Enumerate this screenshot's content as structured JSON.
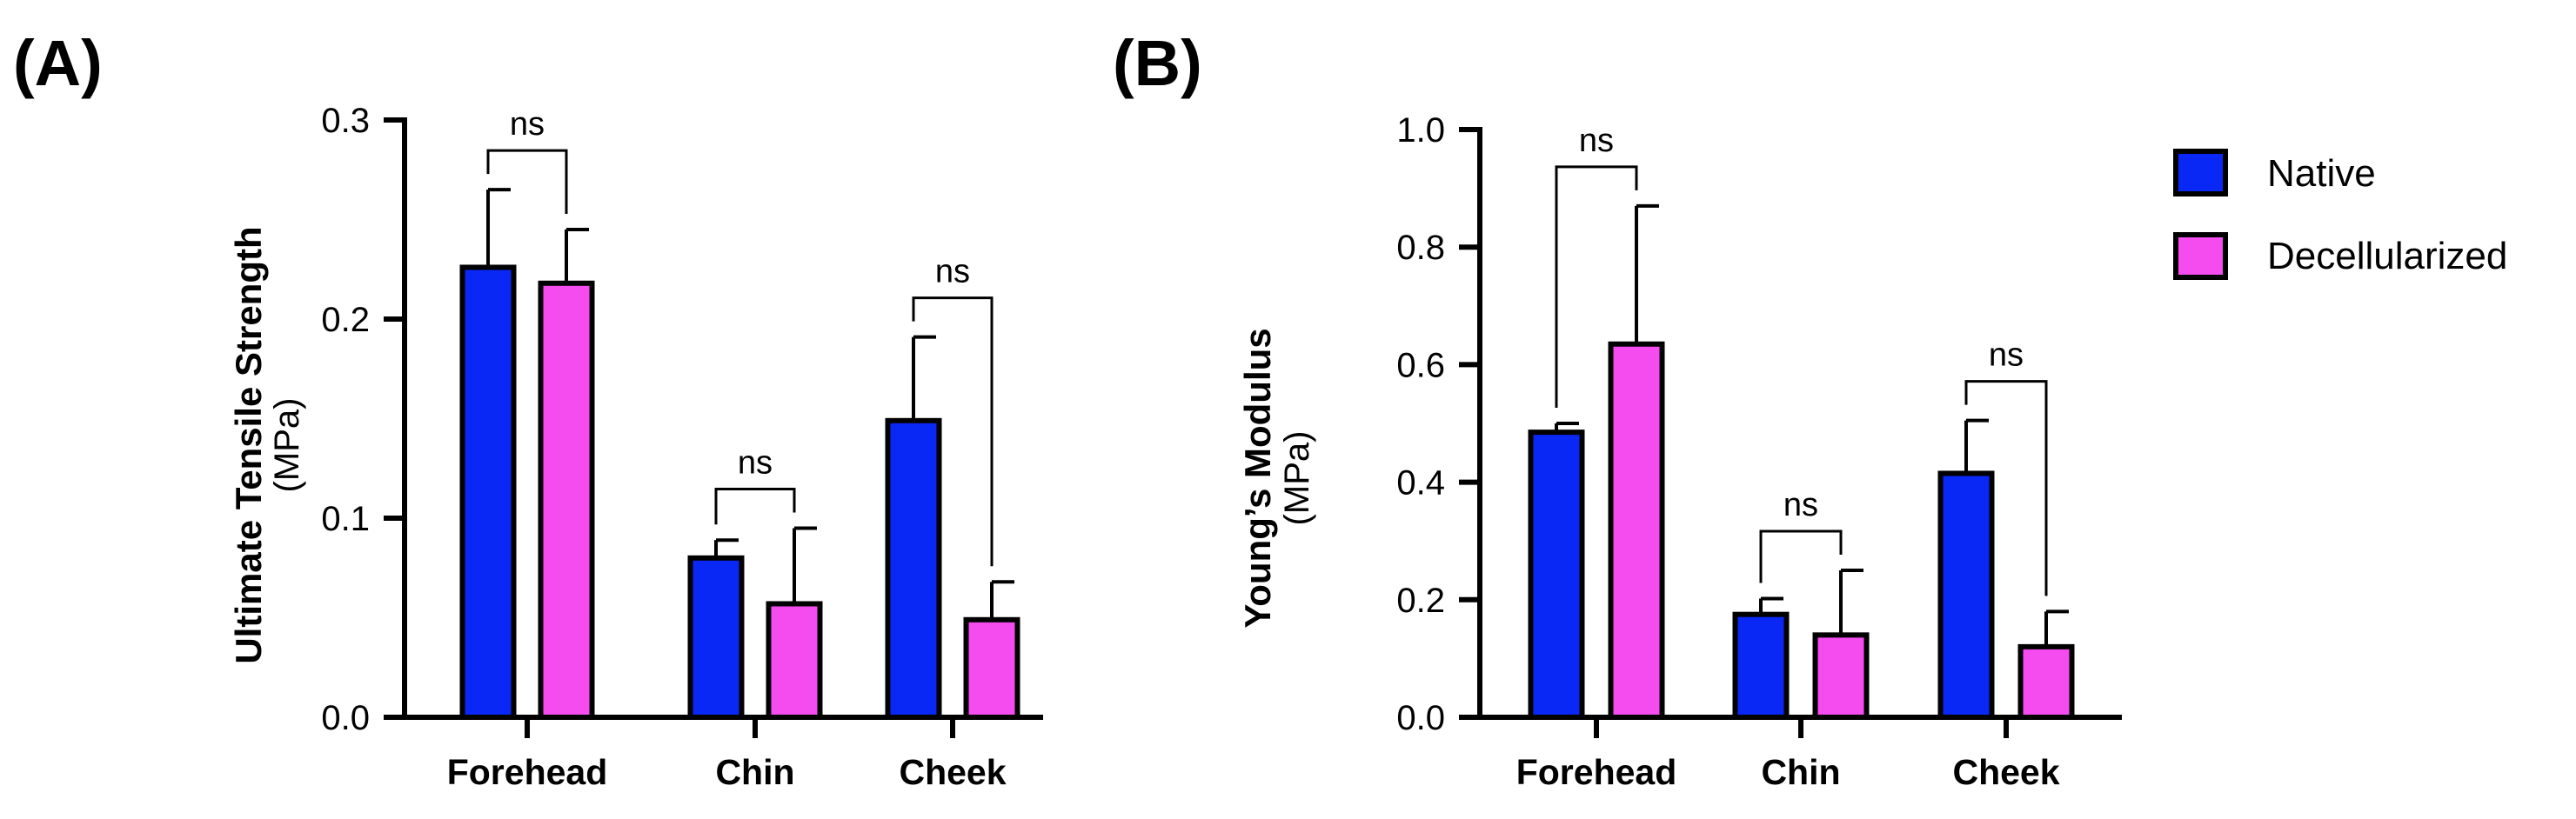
{
  "colors": {
    "native": "#0a28f5",
    "decellularized": "#f54cf0",
    "edge": "#000000"
  },
  "legend": [
    {
      "name": "Native",
      "color": "#0a28f5"
    },
    {
      "name": "Decellularized",
      "color": "#f54cf0"
    }
  ],
  "chart_data": [
    {
      "panel_label": "(A)",
      "type": "bar",
      "title": "",
      "xlabel": "",
      "ylabel": "Ultimate Tensile Strength",
      "ylabel_unit": "(MPa)",
      "ylim": [
        0,
        0.3
      ],
      "yticks": [
        0.0,
        0.1,
        0.2,
        0.3
      ],
      "ytick_labels": [
        "0.0",
        "0.1",
        "0.2",
        "0.3"
      ],
      "categories": [
        "Forehead",
        "Chin",
        "Cheek"
      ],
      "series": [
        {
          "name": "Native",
          "values": [
            0.226,
            0.08,
            0.149
          ],
          "errors": [
            0.039,
            0.009,
            0.042
          ]
        },
        {
          "name": "Decellularized",
          "values": [
            0.218,
            0.057,
            0.049
          ],
          "errors": [
            0.027,
            0.038,
            0.019
          ]
        }
      ],
      "significance": [
        {
          "category": "Forehead",
          "label": "ns"
        },
        {
          "category": "Chin",
          "label": "ns"
        },
        {
          "category": "Cheek",
          "label": "ns"
        }
      ]
    },
    {
      "panel_label": "(B)",
      "type": "bar",
      "title": "",
      "xlabel": "",
      "ylabel": "Young’s Modulus",
      "ylabel_unit": "(MPa)",
      "ylim": [
        0,
        1.0
      ],
      "yticks": [
        0.0,
        0.2,
        0.4,
        0.6,
        0.8,
        1.0
      ],
      "ytick_labels": [
        "0.0",
        "0.2",
        "0.4",
        "0.6",
        "0.8",
        "1.0"
      ],
      "categories": [
        "Forehead",
        "Chin",
        "Cheek"
      ],
      "series": [
        {
          "name": "Native",
          "values": [
            0.485,
            0.175,
            0.415
          ],
          "errors": [
            0.015,
            0.027,
            0.09
          ]
        },
        {
          "name": "Decellularized",
          "values": [
            0.635,
            0.14,
            0.12
          ],
          "errors": [
            0.235,
            0.11,
            0.06
          ]
        }
      ],
      "significance": [
        {
          "category": "Forehead",
          "label": "ns"
        },
        {
          "category": "Chin",
          "label": "ns"
        },
        {
          "category": "Cheek",
          "label": "ns"
        }
      ]
    }
  ]
}
